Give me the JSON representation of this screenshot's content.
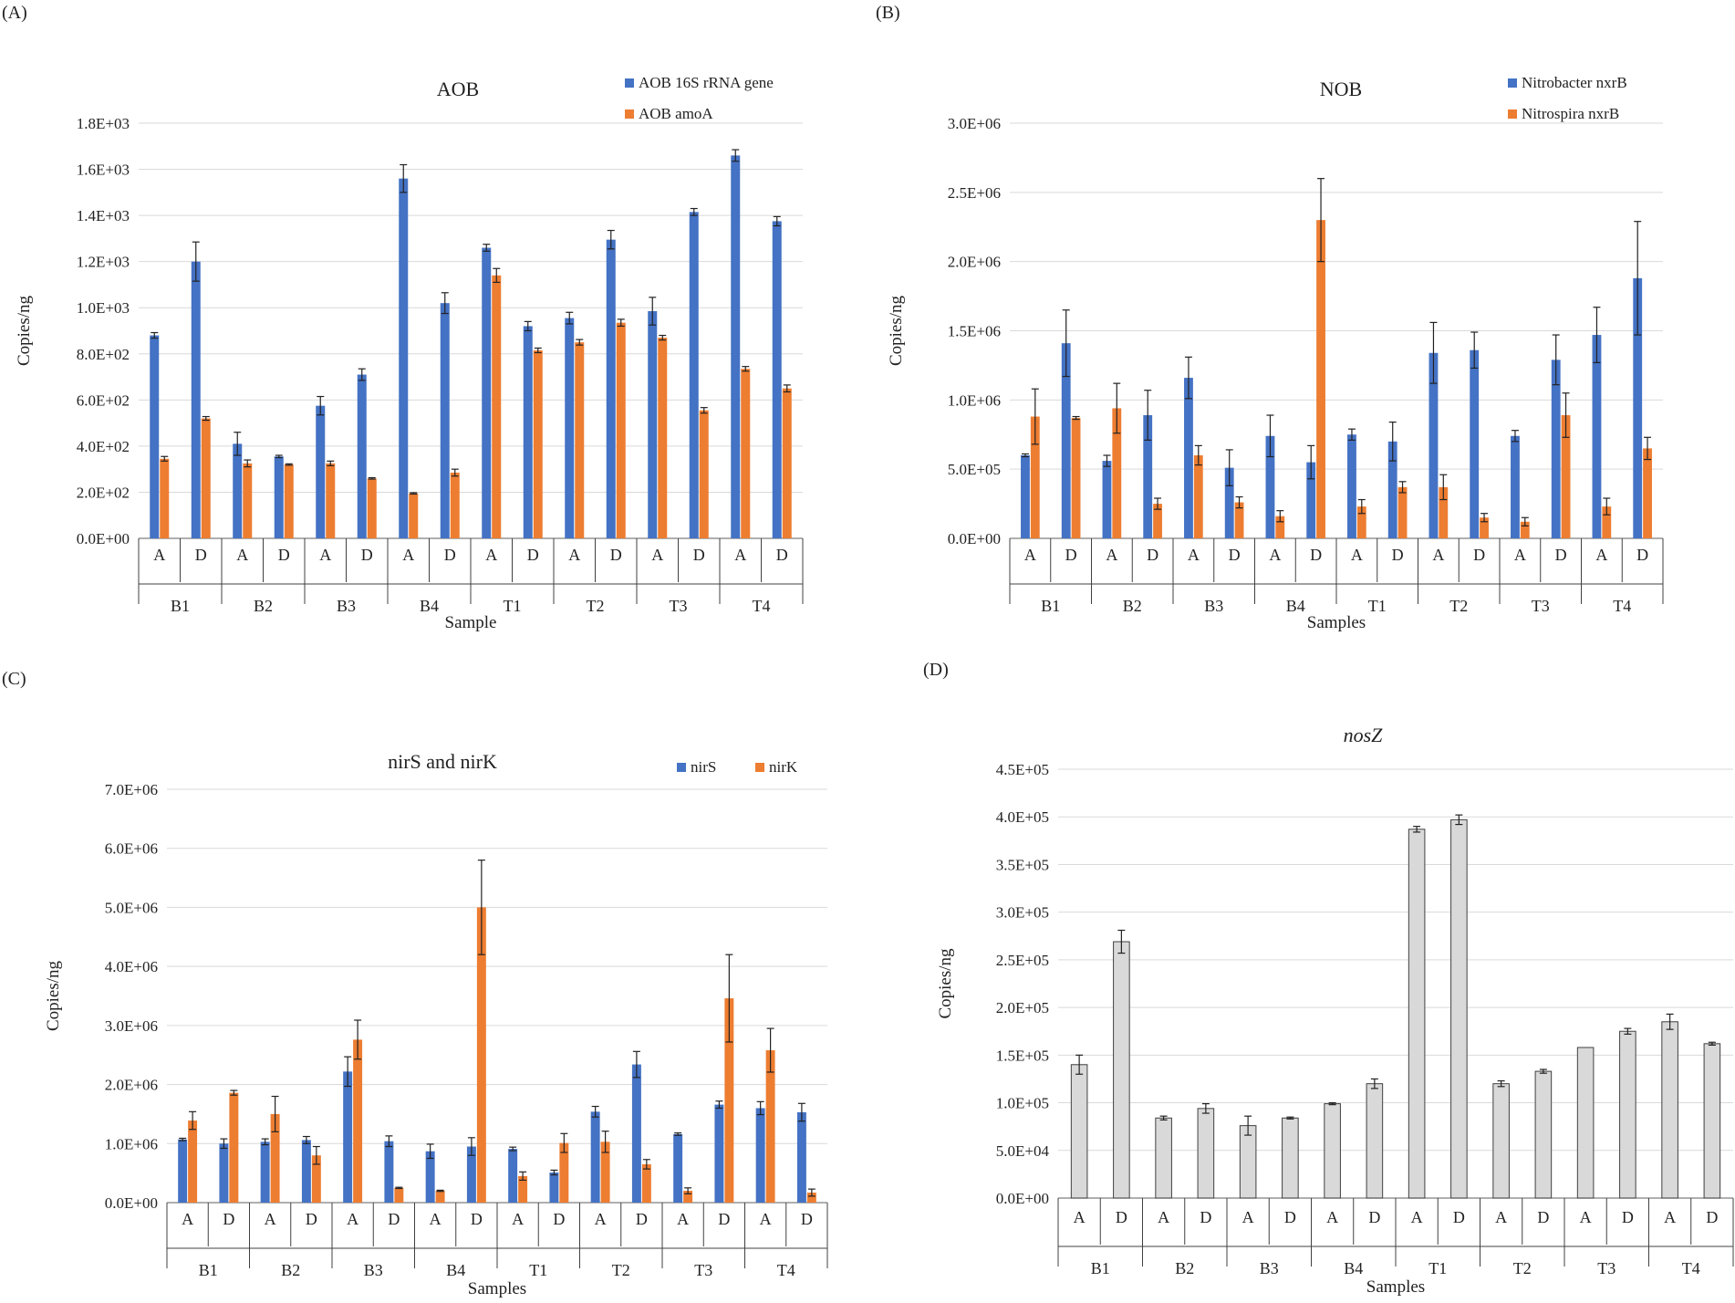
{
  "chart_data": [
    {
      "type": "bar",
      "panel_label": "(A)",
      "title": "AOB",
      "title_italic": false,
      "xlabel": "Sample",
      "ylabel": "Copies/ng",
      "groups": [
        "B1",
        "B2",
        "B3",
        "B4",
        "T1",
        "T2",
        "T3",
        "T4"
      ],
      "subcategories": [
        "A",
        "D"
      ],
      "yticks": [
        "0.0E+00",
        "2.0E+02",
        "4.0E+02",
        "6.0E+02",
        "8.0E+02",
        "1.0E+03",
        "1.2E+03",
        "1.4E+03",
        "1.6E+03",
        "1.8E+03"
      ],
      "ylim": [
        0,
        1800
      ],
      "legend_layout": "vertical",
      "series": [
        {
          "name": "AOB 16S rRNA gene",
          "color": "#4472C4",
          "values": [
            880,
            1200,
            410,
            355,
            575,
            710,
            1560,
            1020,
            1260,
            920,
            955,
            1295,
            985,
            1415,
            1660,
            1375
          ],
          "errors": [
            12,
            85,
            50,
            5,
            40,
            25,
            60,
            45,
            15,
            20,
            25,
            40,
            60,
            15,
            25,
            20
          ]
        },
        {
          "name": "AOB amoA",
          "color": "#ED7D31",
          "values": [
            345,
            520,
            325,
            320,
            325,
            260,
            195,
            285,
            1140,
            815,
            850,
            935,
            870,
            555,
            735,
            650
          ],
          "errors": [
            10,
            8,
            15,
            3,
            10,
            3,
            3,
            15,
            30,
            10,
            12,
            15,
            10,
            12,
            10,
            15
          ]
        }
      ]
    },
    {
      "type": "bar",
      "panel_label": "(B)",
      "title": "NOB",
      "title_italic": false,
      "xlabel": "Samples",
      "ylabel": "Copies/ng",
      "groups": [
        "B1",
        "B2",
        "B3",
        "B4",
        "T1",
        "T2",
        "T3",
        "T4"
      ],
      "subcategories": [
        "A",
        "D"
      ],
      "yticks": [
        "0.0E+00",
        "5.0E+05",
        "1.0E+06",
        "1.5E+06",
        "2.0E+06",
        "2.5E+06",
        "3.0E+06"
      ],
      "ylim": [
        0,
        3000000
      ],
      "legend_layout": "vertical",
      "series": [
        {
          "name": "Nitrobacter nxrB",
          "color": "#4472C4",
          "values": [
            600000,
            1410000,
            560000,
            890000,
            1160000,
            510000,
            740000,
            550000,
            750000,
            700000,
            1340000,
            1360000,
            740000,
            1290000,
            1470000,
            1880000
          ],
          "errors": [
            10000,
            240000,
            40000,
            180000,
            150000,
            130000,
            150000,
            120000,
            40000,
            140000,
            220000,
            130000,
            40000,
            180000,
            200000,
            410000
          ]
        },
        {
          "name": "Nitrospira nxrB",
          "color": "#ED7D31",
          "values": [
            880000,
            870000,
            940000,
            250000,
            600000,
            260000,
            160000,
            2300000,
            230000,
            370000,
            370000,
            150000,
            120000,
            890000,
            230000,
            650000
          ],
          "errors": [
            200000,
            10000,
            180000,
            40000,
            70000,
            40000,
            40000,
            300000,
            50000,
            40000,
            90000,
            30000,
            30000,
            160000,
            60000,
            80000
          ]
        }
      ]
    },
    {
      "type": "bar",
      "panel_label": "(C)",
      "title": "nirS and nirK",
      "title_italic": false,
      "xlabel": "Samples",
      "ylabel": "Copies/ng",
      "groups": [
        "B1",
        "B2",
        "B3",
        "B4",
        "T1",
        "T2",
        "T3",
        "T4"
      ],
      "subcategories": [
        "A",
        "D"
      ],
      "yticks": [
        "0.0E+00",
        "1.0E+06",
        "2.0E+06",
        "3.0E+06",
        "4.0E+06",
        "5.0E+06",
        "6.0E+06",
        "7.0E+06"
      ],
      "ylim": [
        0,
        7000000
      ],
      "legend_layout": "horizontal",
      "series": [
        {
          "name": "nirS",
          "color": "#4472C4",
          "values": [
            1070000,
            1000000,
            1030000,
            1060000,
            2220000,
            1040000,
            870000,
            950000,
            910000,
            510000,
            1540000,
            2340000,
            1160000,
            1660000,
            1600000,
            1530000
          ],
          "errors": [
            20000,
            80000,
            50000,
            60000,
            250000,
            90000,
            120000,
            150000,
            30000,
            40000,
            90000,
            220000,
            20000,
            60000,
            110000,
            150000
          ]
        },
        {
          "name": "nirK",
          "color": "#ED7D31",
          "values": [
            1390000,
            1860000,
            1500000,
            800000,
            2760000,
            250000,
            200000,
            5000000,
            450000,
            1010000,
            1030000,
            650000,
            200000,
            3460000,
            2580000,
            170000
          ],
          "errors": [
            150000,
            40000,
            300000,
            150000,
            330000,
            10000,
            10000,
            800000,
            70000,
            160000,
            180000,
            80000,
            50000,
            740000,
            370000,
            60000
          ]
        }
      ]
    },
    {
      "type": "bar",
      "panel_label": "(D)",
      "title": "nosZ",
      "title_italic": true,
      "xlabel": "Samples",
      "ylabel": "Copies/ng",
      "groups": [
        "B1",
        "B2",
        "B3",
        "B4",
        "T1",
        "T2",
        "T3",
        "T4"
      ],
      "subcategories": [
        "A",
        "D"
      ],
      "yticks": [
        "0.0E+00",
        "5.0E+04",
        "1.0E+05",
        "1.5E+05",
        "2.0E+05",
        "2.5E+05",
        "3.0E+05",
        "3.5E+05",
        "4.0E+05",
        "4.5E+05"
      ],
      "ylim": [
        0,
        450000
      ],
      "legend_layout": "none",
      "series": [
        {
          "name": "nosZ",
          "color": "#D9D9D9",
          "stroke": "#404040",
          "values": [
            140000,
            269000,
            84000,
            94000,
            76000,
            84000,
            99000,
            120000,
            387000,
            397000,
            120000,
            133000,
            158000,
            175000,
            185000,
            162000
          ],
          "errors": [
            10000,
            12000,
            2000,
            5000,
            10000,
            1000,
            1000,
            5000,
            3000,
            5000,
            3000,
            2000,
            0,
            3000,
            8000,
            1500
          ]
        }
      ]
    }
  ]
}
